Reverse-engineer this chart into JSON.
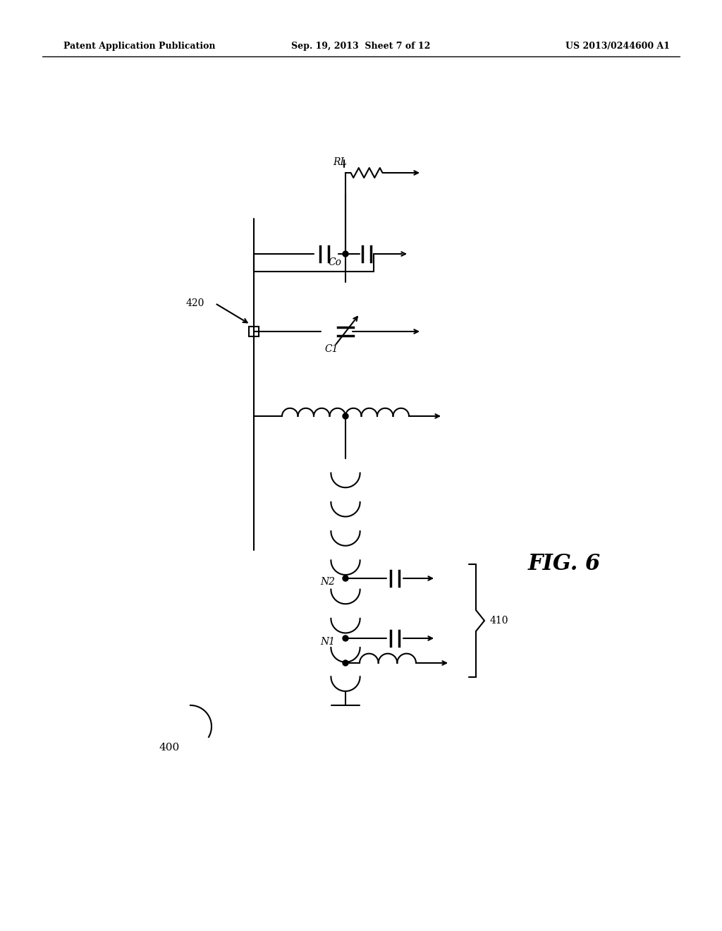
{
  "header_left": "Patent Application Publication",
  "header_center": "Sep. 19, 2013  Sheet 7 of 12",
  "header_right": "US 2013/0244600 A1",
  "figure_label": "FIG. 6",
  "label_400": "400",
  "label_410": "410",
  "label_420": "420",
  "label_N1": "N1",
  "label_N2": "N2",
  "label_Co": "Co",
  "label_C1": "C1",
  "label_RL": "RL",
  "bg_color": "#ffffff",
  "line_color": "#000000"
}
